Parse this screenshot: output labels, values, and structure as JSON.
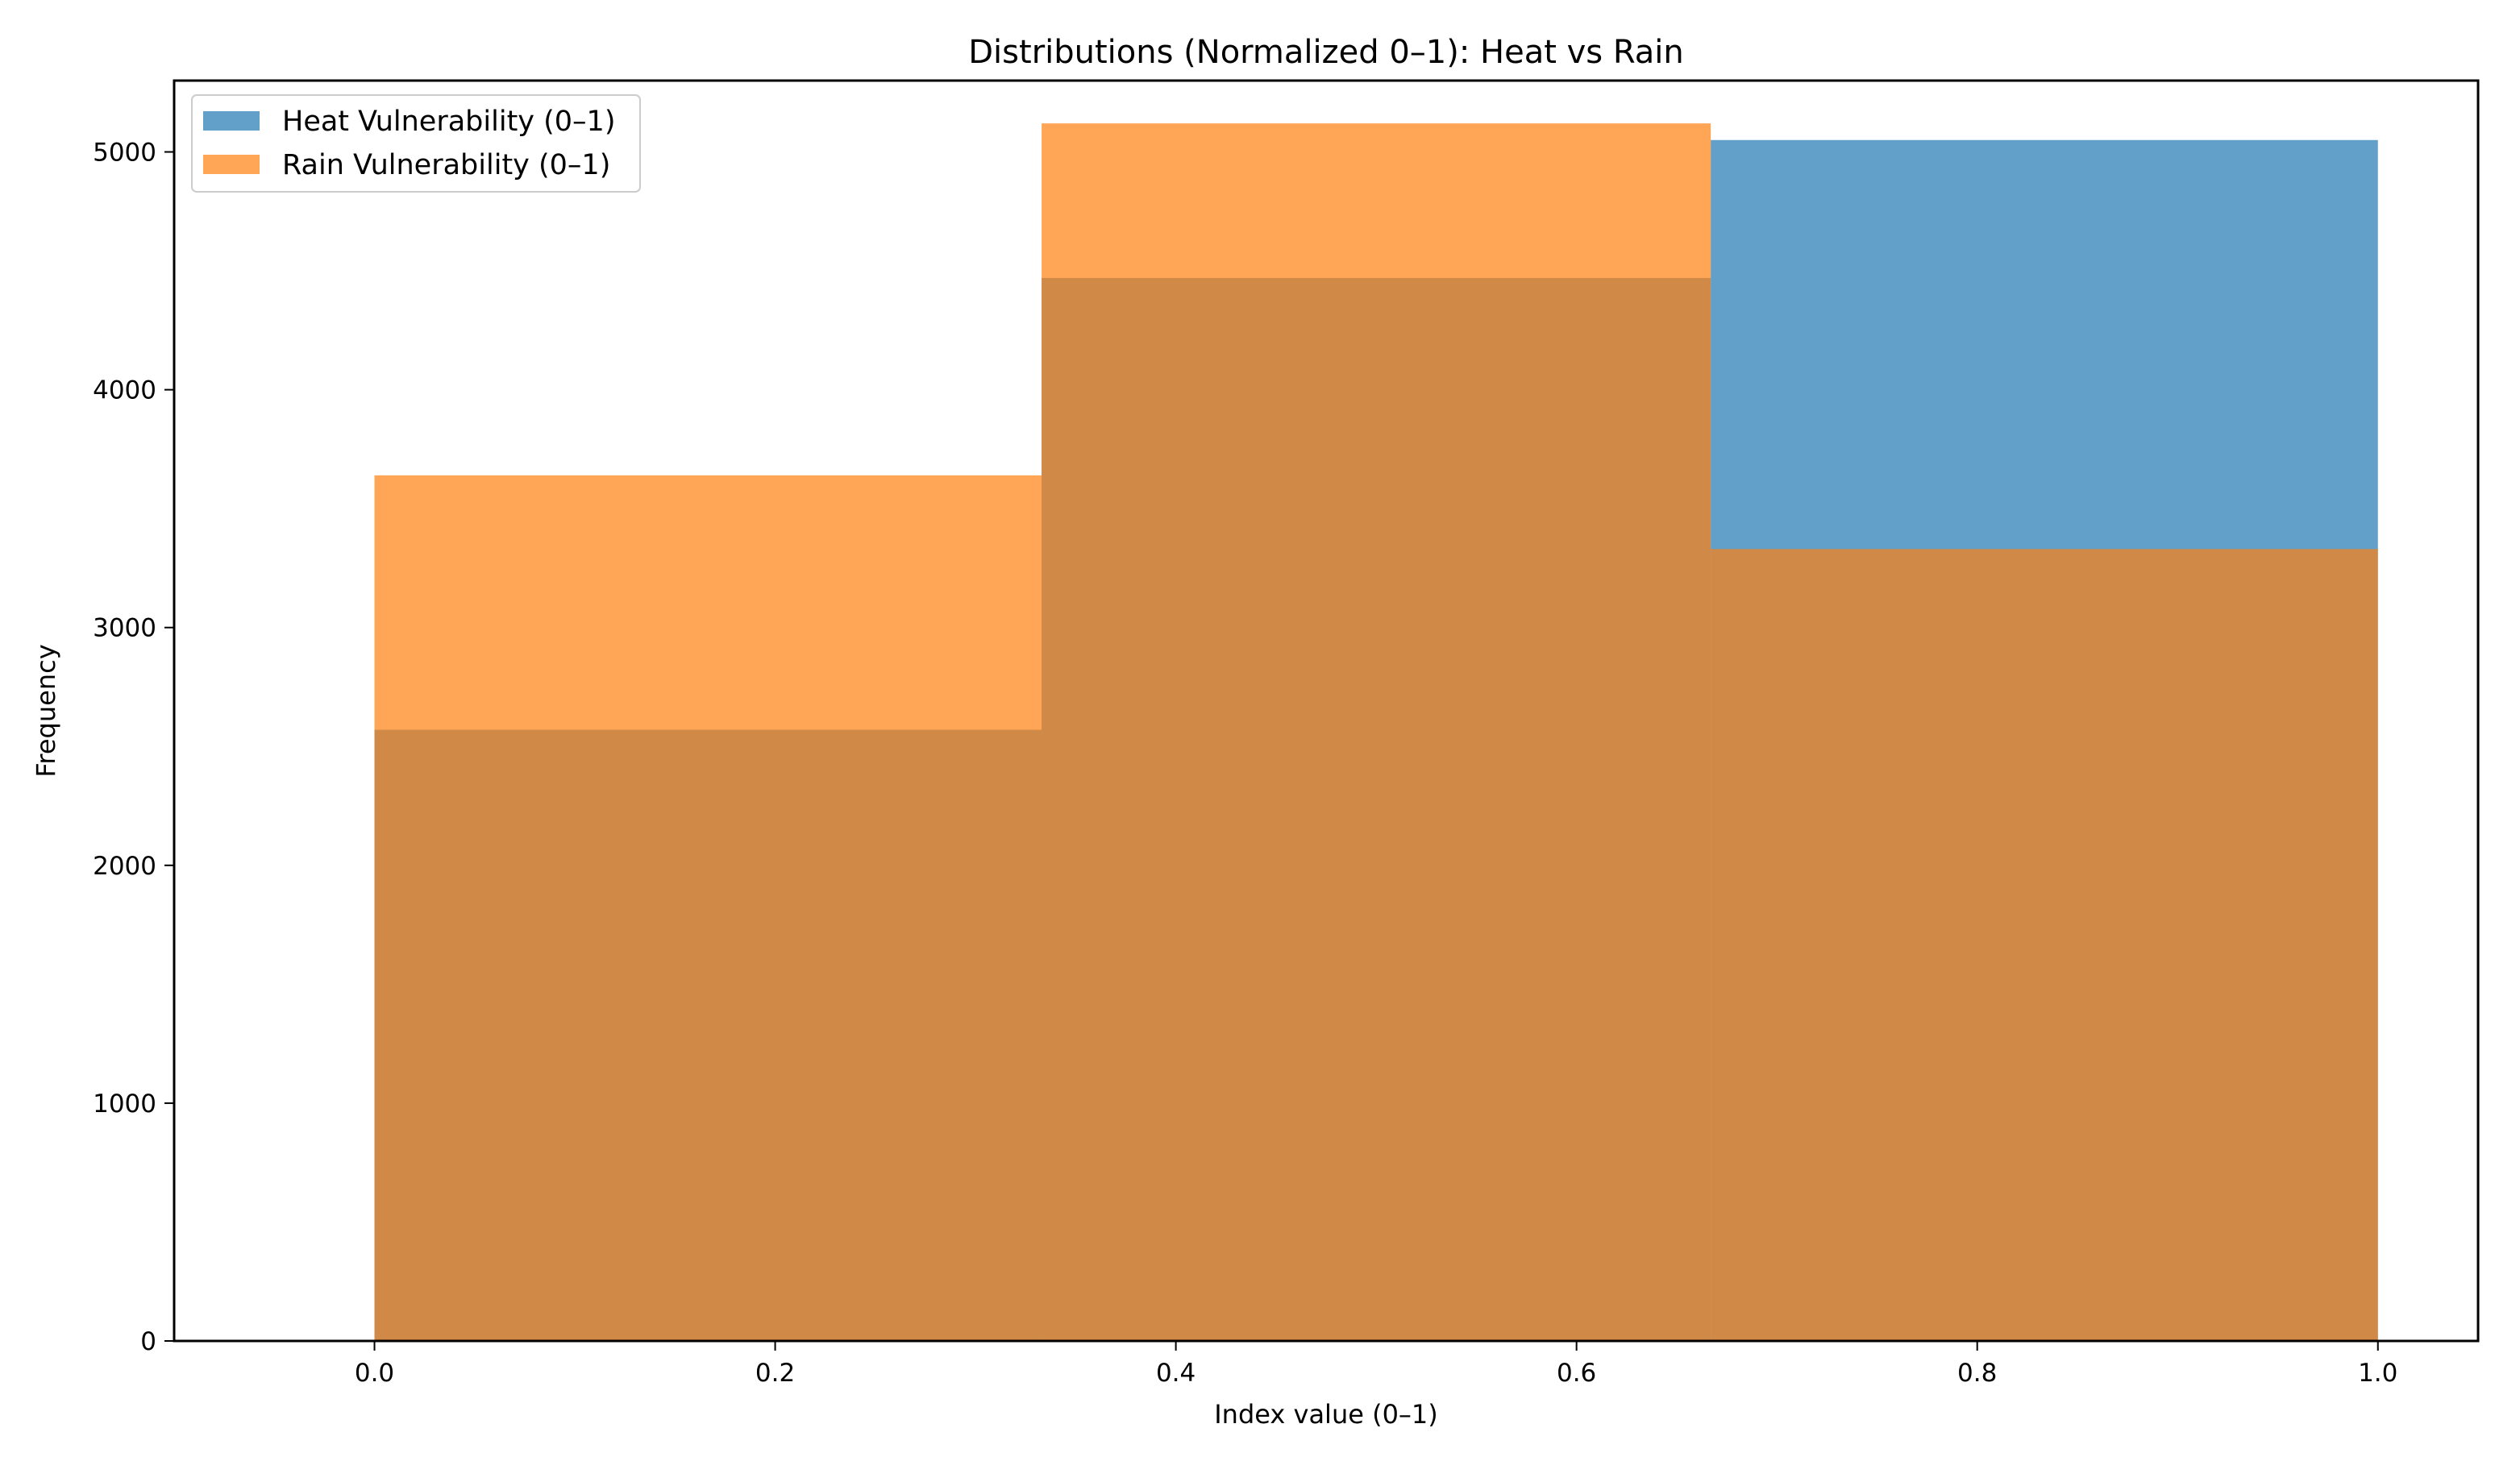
{
  "chart_data": {
    "type": "bar",
    "subtype": "histogram-overlay",
    "title": "Distributions (Normalized 0–1): Heat vs Rain",
    "xlabel": "Index value (0–1)",
    "ylabel": "Frequency",
    "xlim": [
      -0.1,
      1.05
    ],
    "ylim": [
      0,
      5300
    ],
    "xticks": [
      "0.0",
      "0.2",
      "0.4",
      "0.6",
      "0.8",
      "1.0"
    ],
    "yticks": [
      "0",
      "1000",
      "2000",
      "3000",
      "4000",
      "5000"
    ],
    "bin_edges": [
      0.0,
      0.333,
      0.667,
      1.0
    ],
    "grid": false,
    "legend_position": "top-left",
    "series": [
      {
        "name": "Heat Vulnerability (0–1)",
        "values": [
          2570,
          4470,
          5050
        ],
        "color": "#1f77b4",
        "alpha": 0.7
      },
      {
        "name": "Rain Vulnerability (0–1)",
        "values": [
          3640,
          5120,
          3330
        ],
        "color": "#ff7f0e",
        "alpha": 0.7
      }
    ]
  }
}
